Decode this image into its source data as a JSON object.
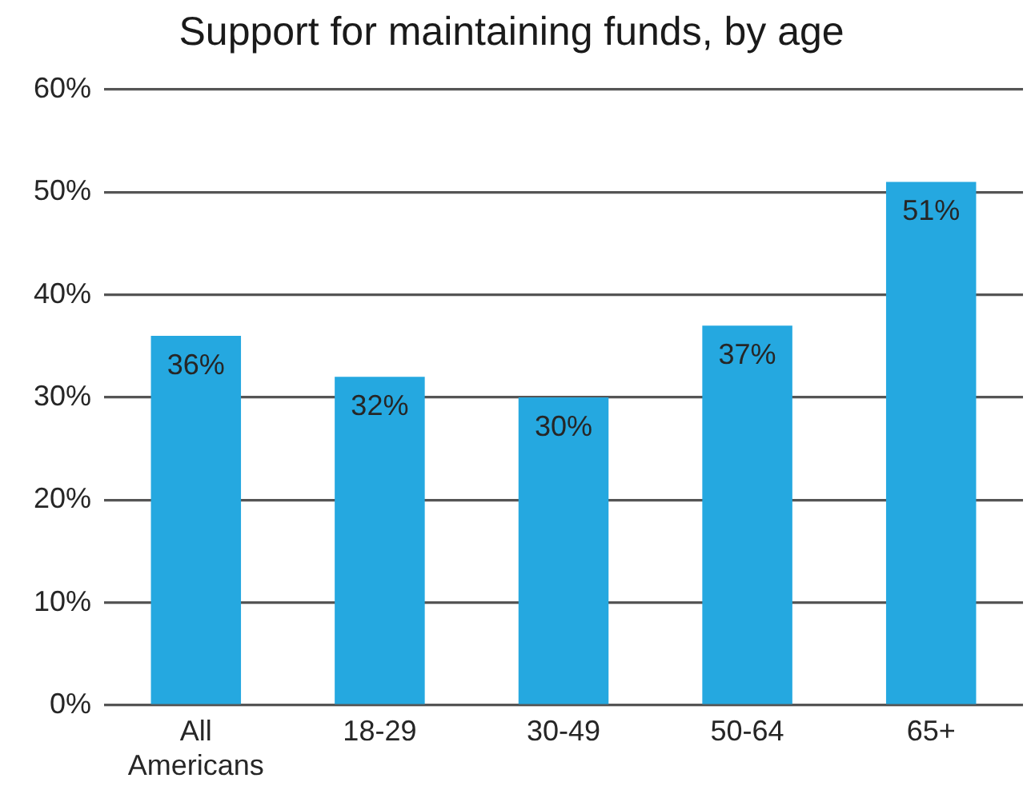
{
  "chart_data": {
    "type": "bar",
    "title": "Support for maintaining funds, by age",
    "categories": [
      "All Americans",
      "18-29",
      "30-49",
      "50-64",
      "65+"
    ],
    "values": [
      36,
      32,
      30,
      37,
      51
    ],
    "color": "#25a8e0",
    "value_labels": [
      "36%",
      "32%",
      "30%",
      "37%",
      "51%"
    ],
    "ylim": [
      0,
      60
    ],
    "yticks": [
      {
        "value": 0,
        "label": "0%"
      },
      {
        "value": 10,
        "label": "10%"
      },
      {
        "value": 20,
        "label": "20%"
      },
      {
        "value": 30,
        "label": "30%"
      },
      {
        "value": 40,
        "label": "40%"
      },
      {
        "value": 50,
        "label": "50%"
      },
      {
        "value": 60,
        "label": "60%"
      }
    ],
    "grid": "y"
  }
}
